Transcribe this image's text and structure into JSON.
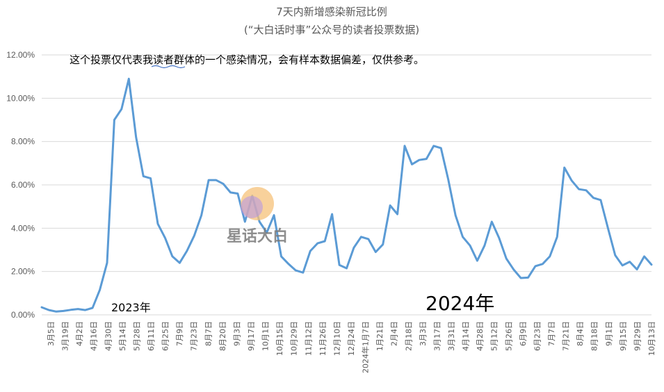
{
  "chart_data": {
    "type": "line",
    "title": "7天内新增感染新冠比例",
    "subtitle": "(“大白话时事”公众号的读者投票数据)",
    "ylim": [
      0,
      12
    ],
    "yticks": [
      "0.00%",
      "2.00%",
      "4.00%",
      "6.00%",
      "8.00%",
      "10.00%",
      "12.00%"
    ],
    "grid": true,
    "series_color": "#5b9bd5",
    "x_labels": [
      "3月5日",
      "3月19日",
      "4月2日",
      "4月16日",
      "4月30日",
      "5月14日",
      "5月28日",
      "6月11日",
      "6月25日",
      "7月9日",
      "7月23日",
      "8月7日",
      "8月20日",
      "9月3日",
      "9月17日",
      "10月1日",
      "10月15日",
      "10月29日",
      "11月12日",
      "11月26日",
      "12月10日",
      "12月24日",
      "2024年1月7日",
      "1月21日",
      "2月4日",
      "2月18日",
      "3月3日",
      "3月17日",
      "3月31日",
      "4月14日",
      "4月28日",
      "5月12日",
      "5月26日",
      "6月9日",
      "6月23日",
      "7月7日",
      "7月21日",
      "8月4日",
      "8月18日",
      "9月1日",
      "9月15日",
      "9月29日",
      "10月13日"
    ],
    "values": [
      0.35,
      0.22,
      0.15,
      0.18,
      0.23,
      0.27,
      0.22,
      0.32,
      1.15,
      2.4,
      9.0,
      9.5,
      10.9,
      8.2,
      6.4,
      6.3,
      4.2,
      3.55,
      2.7,
      2.4,
      2.95,
      3.65,
      4.6,
      6.22,
      6.22,
      6.05,
      5.65,
      5.6,
      4.3,
      5.5,
      4.3,
      3.8,
      4.6,
      2.7,
      2.35,
      2.05,
      1.95,
      2.95,
      3.3,
      3.4,
      4.65,
      2.3,
      2.15,
      3.1,
      3.6,
      3.5,
      2.9,
      3.25,
      5.05,
      4.65,
      7.8,
      6.95,
      7.15,
      7.2,
      7.8,
      7.7,
      6.25,
      4.6,
      3.6,
      3.2,
      2.5,
      3.2,
      4.3,
      3.55,
      2.6,
      2.1,
      1.7,
      1.72,
      2.25,
      2.35,
      2.7,
      3.6,
      6.8,
      6.2,
      5.8,
      5.75,
      5.4,
      5.3,
      4.0,
      2.75,
      2.28,
      2.45,
      2.1,
      2.7,
      2.32
    ]
  },
  "annotations": {
    "note": "这个投票仅代表我读者群体的一个感染情况，会有样本数据偏差，仅供参考。",
    "year_2023": "2023年",
    "year_2024": "2024年"
  },
  "watermark": {
    "text": "星话大白"
  }
}
